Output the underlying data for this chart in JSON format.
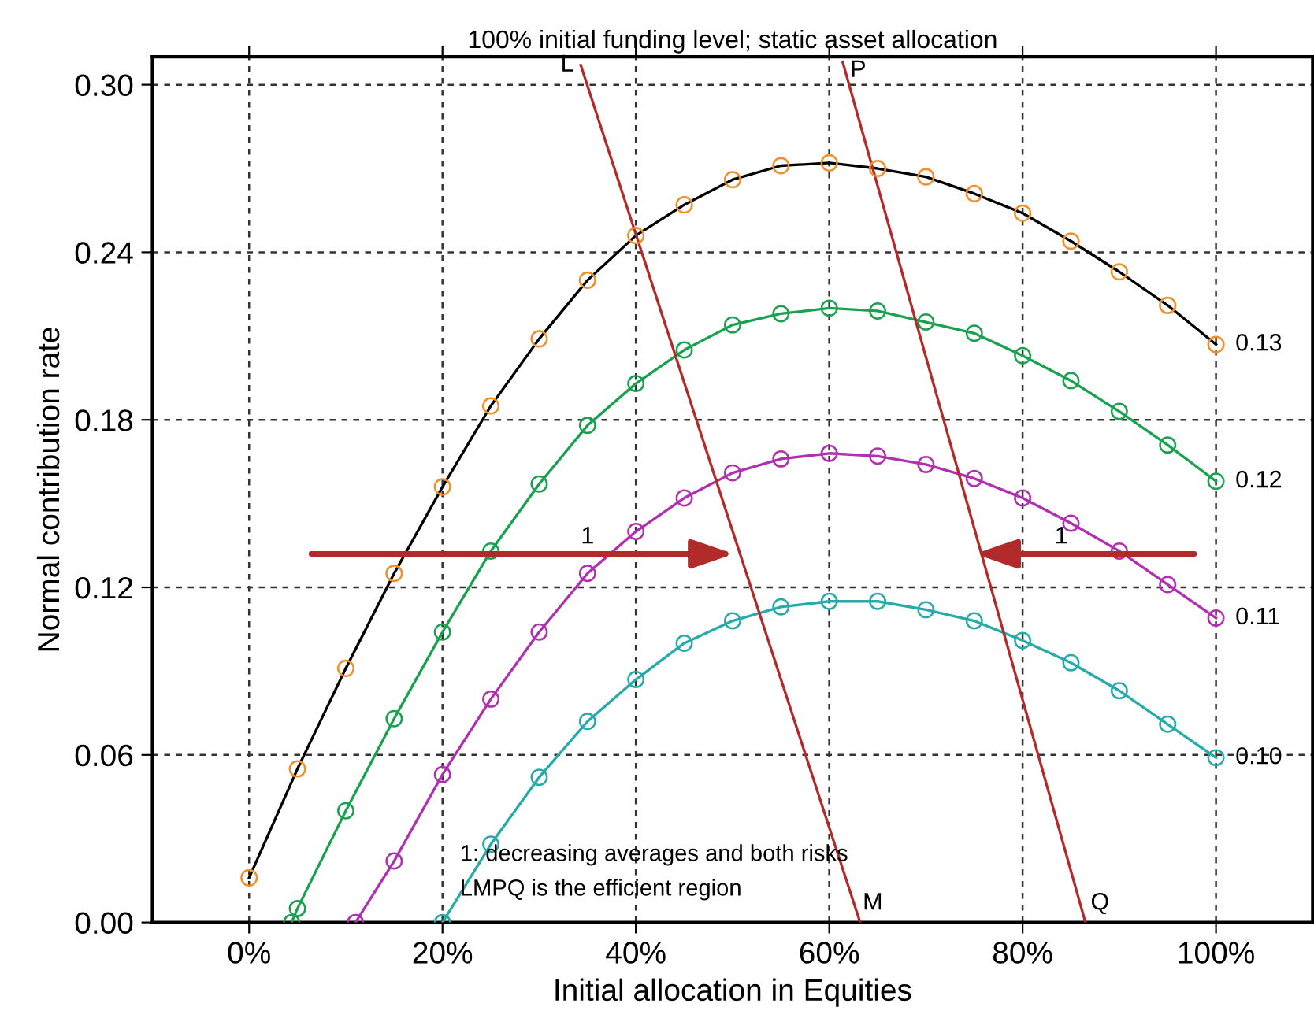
{
  "chart_data": {
    "type": "line",
    "title": "100% initial funding level; static asset allocation",
    "xlabel": "Initial allocation in Equities",
    "ylabel": "Normal contribution rate",
    "xlim": [
      -10,
      110
    ],
    "ylim": [
      0,
      0.31
    ],
    "xticks": [
      {
        "value": 0,
        "label": "0%"
      },
      {
        "value": 20,
        "label": "20%"
      },
      {
        "value": 40,
        "label": "40%"
      },
      {
        "value": 60,
        "label": "60%"
      },
      {
        "value": 80,
        "label": "80%"
      },
      {
        "value": 100,
        "label": "100%"
      }
    ],
    "yticks": [
      {
        "value": 0,
        "label": "0.00"
      },
      {
        "value": 0.06,
        "label": "0.06"
      },
      {
        "value": 0.12,
        "label": "0.12"
      },
      {
        "value": 0.18,
        "label": "0.18"
      },
      {
        "value": 0.24,
        "label": "0.24"
      },
      {
        "value": 0.3,
        "label": "0.30"
      }
    ],
    "grid": true,
    "legend": false,
    "line_style": "solid",
    "series": [
      {
        "name": "0.13",
        "color": "#000000",
        "marker": "none",
        "x": [
          0,
          5,
          10,
          15,
          20,
          25,
          30,
          35,
          40,
          45,
          50,
          55,
          60,
          65,
          70,
          75,
          80,
          85,
          90,
          95,
          100
        ],
        "values": [
          0.016,
          0.055,
          0.091,
          0.125,
          0.156,
          0.185,
          0.209,
          0.23,
          0.246,
          0.257,
          0.266,
          0.271,
          0.272,
          0.27,
          0.267,
          0.261,
          0.254,
          0.244,
          0.233,
          0.221,
          0.207
        ]
      },
      {
        "type": "scatter",
        "color": "#f0902a",
        "marker": "circle",
        "x": [
          0,
          5,
          10,
          15,
          20,
          25,
          30,
          35,
          40,
          45,
          50,
          55,
          60,
          65,
          70,
          75,
          80,
          85,
          90,
          95,
          100
        ],
        "values": [
          0.016,
          0.055,
          0.091,
          0.125,
          0.156,
          0.185,
          0.209,
          0.23,
          0.246,
          0.257,
          0.266,
          0.271,
          0.272,
          0.27,
          0.267,
          0.261,
          0.254,
          0.244,
          0.233,
          0.221,
          0.207
        ]
      },
      {
        "name": "0.12",
        "color": "#1aa150",
        "marker": "circle",
        "x": [
          4.4,
          5,
          10,
          15,
          20,
          25,
          30,
          35,
          40,
          45,
          50,
          55,
          60,
          65,
          70,
          75,
          80,
          85,
          90,
          95,
          100
        ],
        "values": [
          0,
          0.005,
          0.04,
          0.073,
          0.104,
          0.133,
          0.157,
          0.178,
          0.193,
          0.205,
          0.214,
          0.218,
          0.22,
          0.219,
          0.215,
          0.211,
          0.203,
          0.194,
          0.183,
          0.171,
          0.158
        ]
      },
      {
        "name": "0.11",
        "color": "#b030b0",
        "marker": "circle",
        "x": [
          11,
          15,
          20,
          25,
          30,
          35,
          40,
          45,
          50,
          55,
          60,
          65,
          70,
          75,
          80,
          85,
          90,
          95,
          100
        ],
        "values": [
          0,
          0.022,
          0.053,
          0.08,
          0.104,
          0.125,
          0.14,
          0.152,
          0.161,
          0.166,
          0.168,
          0.167,
          0.164,
          0.159,
          0.152,
          0.143,
          0.133,
          0.121,
          0.109
        ]
      },
      {
        "name": "0.10",
        "color": "#26aaaa",
        "marker": "circle",
        "x": [
          20,
          25,
          30,
          35,
          40,
          45,
          50,
          55,
          60,
          65,
          70,
          75,
          80,
          85,
          90,
          95,
          100
        ],
        "values": [
          0,
          0.028,
          0.052,
          0.072,
          0.087,
          0.1,
          0.108,
          0.113,
          0.115,
          0.115,
          0.112,
          0.108,
          0.101,
          0.093,
          0.083,
          0.071,
          0.059
        ]
      },
      {
        "type": "line",
        "color": "#b22a2a",
        "marker": "none",
        "x": [
          34.3,
          63.2
        ],
        "values": [
          0.307,
          0
        ]
      },
      {
        "type": "line",
        "color": "#b22a2a",
        "marker": "none",
        "x": [
          61.4,
          86.5
        ],
        "values": [
          0.308,
          0
        ]
      }
    ],
    "annotations": [
      {
        "text": "L",
        "x": 34.3,
        "y": 0.307
      },
      "M",
      "P",
      "Q",
      "1",
      "1",
      "1: decreasing averages and both risks",
      "LMPQ is the efficient region"
    ]
  }
}
